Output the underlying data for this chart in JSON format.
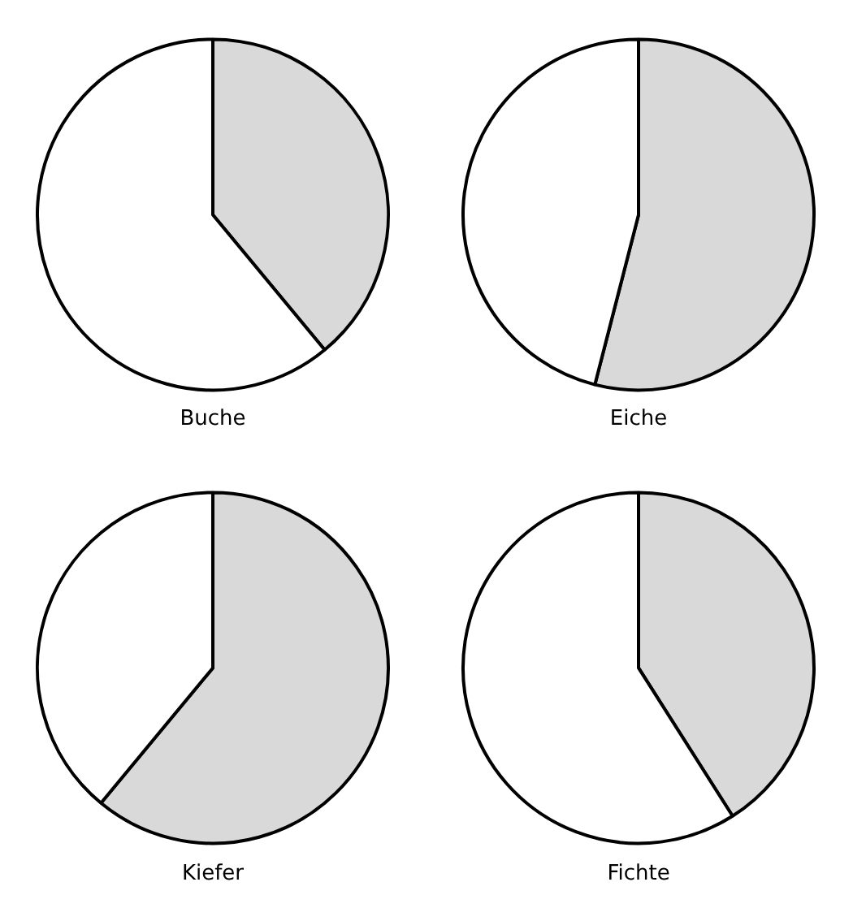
{
  "chart_data": [
    {
      "type": "pie",
      "title": "Buche",
      "categories": [
        null,
        null
      ],
      "values": [
        39,
        61
      ],
      "colors": [
        "#d9d9d9",
        "#ffffff"
      ]
    },
    {
      "type": "pie",
      "title": "Eiche",
      "categories": [
        null,
        null
      ],
      "values": [
        54,
        46
      ],
      "colors": [
        "#d9d9d9",
        "#ffffff"
      ]
    },
    {
      "type": "pie",
      "title": "Kiefer",
      "categories": [
        null,
        null
      ],
      "values": [
        61,
        39
      ],
      "colors": [
        "#d9d9d9",
        "#ffffff"
      ]
    },
    {
      "type": "pie",
      "title": "Fichte",
      "categories": [
        null,
        null
      ],
      "values": [
        41,
        59
      ],
      "colors": [
        "#d9d9d9",
        "#ffffff"
      ]
    }
  ]
}
